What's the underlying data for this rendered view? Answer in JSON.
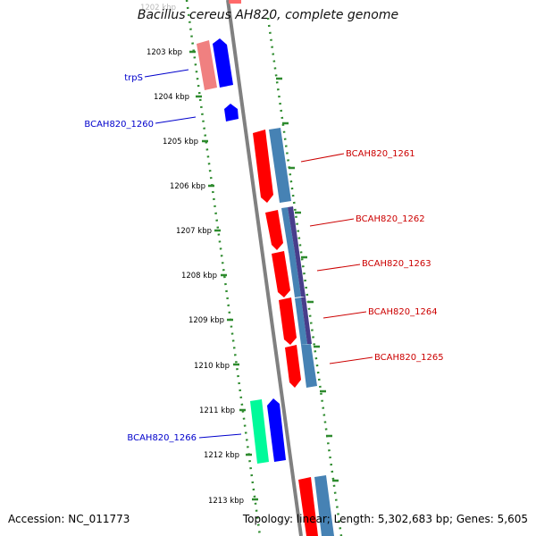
{
  "title": "Bacillus cereus AH820, complete genome",
  "footer": {
    "accession": "Accession: NC_011773",
    "summary": "Topology: linear; Length: 5,302,683 bp; Genes: 5,605"
  },
  "colors": {
    "backbone": "#808080",
    "scale_ticks": "#2e8b2e",
    "gene_forward": "#ff0000",
    "gene_forward_light": "#f08080",
    "gene_reverse": "#0000ff",
    "cds_steel": "#4682b4",
    "cds_dark": "#483d8b",
    "gene_green": "#00fa9a",
    "label_blue": "#0000cc",
    "label_red": "#cc0000"
  },
  "scale": {
    "top_label": "1202 kbp",
    "labels": [
      "1203 kbp",
      "1204 kbp",
      "1205 kbp",
      "1206 kbp",
      "1207 kbp",
      "1208 kbp",
      "1209 kbp",
      "1210 kbp",
      "1211 kbp",
      "1212 kbp",
      "1213 kbp"
    ]
  },
  "features": [
    {
      "label": "trpS",
      "side": "left"
    },
    {
      "label": "BCAH820_1260",
      "side": "left"
    },
    {
      "label": "BCAH820_1261",
      "side": "right"
    },
    {
      "label": "BCAH820_1262",
      "side": "right"
    },
    {
      "label": "BCAH820_1263",
      "side": "right"
    },
    {
      "label": "BCAH820_1264",
      "side": "right"
    },
    {
      "label": "BCAH820_1265",
      "side": "right"
    },
    {
      "label": "BCAH820_1266",
      "side": "left"
    }
  ]
}
